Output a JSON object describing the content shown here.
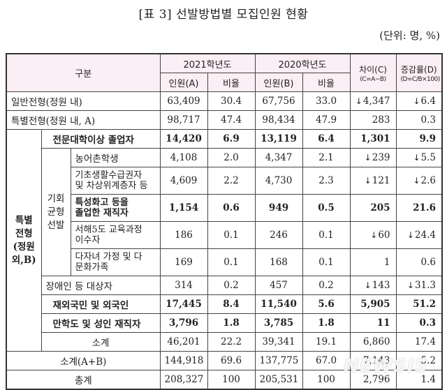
{
  "title": "[표 3] 선발방법별 모집인원 현황",
  "unit": "(단위: 명, %)",
  "header": {
    "category": "구분",
    "year2021": "2021학년도",
    "year2020": "2020학년도",
    "count_a": "인원(A)",
    "ratio_a": "비율",
    "count_b": "인원(B)",
    "ratio_b": "비율",
    "diff": "차이(C)",
    "diff_formula": "(C=A−B)",
    "rate": "증감률(D)",
    "rate_formula": "(D=C/B×100)"
  },
  "groups": {
    "special_outside": "특별 전형 (정원 외,B)",
    "special_outside_lines": [
      "특별",
      "전형",
      "(정원",
      "외,B)"
    ],
    "equal_opportunity_lines": [
      "기회",
      "균형",
      "선발"
    ]
  },
  "rows": [
    {
      "label": "일반전형(정원 내)",
      "a": "63,409",
      "ra": "30.4",
      "b": "67,756",
      "rb": "33.0",
      "c": "4,347",
      "c_down": true,
      "d": "6.4",
      "d_down": true,
      "bold": false
    },
    {
      "label": "특별전형(정원 내, A)",
      "a": "98,717",
      "ra": "47.4",
      "b": "98,434",
      "rb": "47.9",
      "c": "283",
      "c_down": false,
      "d": "0.3",
      "d_down": false,
      "bold": false
    },
    {
      "label": "전문대학이상 졸업자",
      "a": "14,420",
      "ra": "6.9",
      "b": "13,119",
      "rb": "6.4",
      "c": "1,301",
      "c_down": false,
      "d": "9.9",
      "d_down": false,
      "bold": true
    },
    {
      "label": "농어촌학생",
      "a": "4,108",
      "ra": "2.0",
      "b": "4,347",
      "rb": "2.1",
      "c": "239",
      "c_down": true,
      "d": "5.5",
      "d_down": true,
      "bold": false
    },
    {
      "label": "기초생활수급권자 및 차상위계층자 등",
      "label_lines": [
        "기초생활수급권자",
        "및 차상위계층자 등"
      ],
      "a": "4,609",
      "ra": "2.2",
      "b": "4,730",
      "rb": "2.3",
      "c": "121",
      "c_down": true,
      "d": "2.6",
      "d_down": true,
      "bold": false
    },
    {
      "label": "특성화고 등을 졸업한 재직자",
      "label_lines": [
        "특성화고 등을",
        "졸업한 재직자"
      ],
      "a": "1,154",
      "ra": "0.6",
      "b": "949",
      "rb": "0.5",
      "c": "205",
      "c_down": false,
      "d": "21.6",
      "d_down": false,
      "bold": true
    },
    {
      "label": "서해5도 교육과정 이수자",
      "label_lines": [
        "서해5도 교육과정",
        "이수자"
      ],
      "a": "186",
      "ra": "0.1",
      "b": "246",
      "rb": "0.1",
      "c": "60",
      "c_down": true,
      "d": "24.4",
      "d_down": true,
      "bold": false
    },
    {
      "label": "다자녀 가정 및 다문화가족",
      "label_lines": [
        "다자녀 가정 및 다",
        "문화가족"
      ],
      "a": "169",
      "ra": "0.1",
      "b": "168",
      "rb": "0.1",
      "c": "1",
      "c_down": false,
      "d": "0.6",
      "d_down": false,
      "bold": false
    },
    {
      "label": "장애인 등 대상자",
      "a": "314",
      "ra": "0.2",
      "b": "457",
      "rb": "0.2",
      "c": "143",
      "c_down": true,
      "d": "31.3",
      "d_down": true,
      "bold": false
    },
    {
      "label": "재외국민 및 외국인",
      "a": "17,445",
      "ra": "8.4",
      "b": "11,540",
      "rb": "5.6",
      "c": "5,905",
      "c_down": false,
      "d": "51.2",
      "d_down": false,
      "bold": true
    },
    {
      "label": "만학도 및 성인 재직자",
      "a": "3,796",
      "ra": "1.8",
      "b": "3,785",
      "rb": "1.8",
      "c": "11",
      "c_down": false,
      "d": "0.3",
      "d_down": false,
      "bold": true
    },
    {
      "label": "소계",
      "a": "46,201",
      "ra": "22.2",
      "b": "39,341",
      "rb": "19.1",
      "c": "6,860",
      "c_down": false,
      "d": "17.4",
      "d_down": false,
      "bold": false
    },
    {
      "label": "소계(A+B)",
      "a": "144,918",
      "ra": "69.6",
      "b": "137,775",
      "rb": "67.0",
      "c": "7,143",
      "c_down": false,
      "d": "5.2",
      "d_down": false,
      "bold": false
    },
    {
      "label": "총계",
      "a": "208,327",
      "ra": "100",
      "b": "205,531",
      "rb": "100",
      "c": "2,796",
      "c_down": false,
      "d": "1.4",
      "d_down": false,
      "bold": false
    }
  ],
  "icons": {
    "down_arrow": "↓"
  },
  "watermark": "NEWSIS"
}
